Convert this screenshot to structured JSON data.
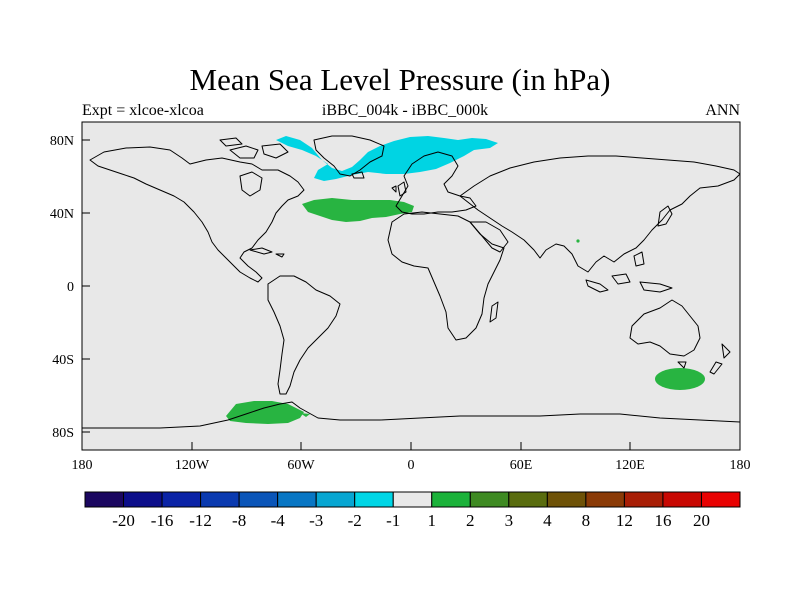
{
  "map": {
    "title": "Mean Sea Level Pressure (in hPa)",
    "left_label": "Expt = xlcoe-xlcoa",
    "center_label": "iBBC_004k - iBBC_000k",
    "right_label": "ANN",
    "lat_labels": [
      "80N",
      "40N",
      "0",
      "40S",
      "80S"
    ],
    "lon_labels": [
      "180",
      "120W",
      "60W",
      "0",
      "60E",
      "120E",
      "180"
    ],
    "ocean_color": "#e8e8e8",
    "coast_color": "#000000"
  },
  "anomalies": {
    "arctic_low": {
      "value_class": "-2 to -1",
      "color": "#00d4e3"
    },
    "north_atlantic_high": {
      "value_class": "1 to 2",
      "color": "#28b441"
    },
    "southern_ocean_high": {
      "value_class": "1 to 2",
      "color": "#28b441"
    },
    "antarctic_high": {
      "value_class": "1 to 2",
      "color": "#28b441"
    }
  },
  "colorbar": {
    "labels": [
      "-20",
      "-16",
      "-12",
      "-8",
      "-4",
      "-3",
      "-2",
      "-1",
      "1",
      "2",
      "3",
      "4",
      "8",
      "12",
      "16",
      "20"
    ],
    "colors": [
      "#1b0760",
      "#0c0e8a",
      "#0a23a6",
      "#0a3ab0",
      "#0a55b8",
      "#0876c4",
      "#07a6d2",
      "#00d6e6",
      "#e8e8e8",
      "#1bb23a",
      "#3e8a22",
      "#596c0e",
      "#6e5207",
      "#8a3a06",
      "#a81e05",
      "#c80802",
      "#e80202"
    ]
  }
}
